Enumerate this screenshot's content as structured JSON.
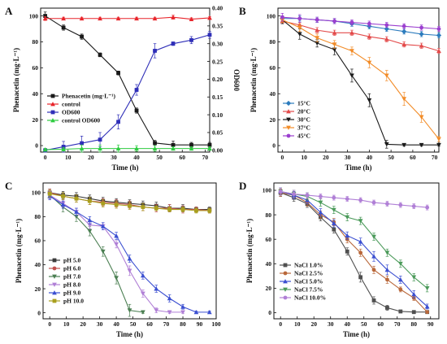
{
  "chart_data": [
    {
      "panel": "A",
      "type": "line",
      "xlabel": "Time (h)",
      "ylabel": "Phenacetin (mg·L⁻¹)",
      "y2label": "OD600",
      "xlim": [
        -2,
        72
      ],
      "ylim": [
        -5,
        106
      ],
      "y2lim": [
        -0.005,
        0.4
      ],
      "xticks": [
        0,
        10,
        20,
        30,
        40,
        50,
        60,
        70
      ],
      "yticks": [
        0,
        20,
        40,
        60,
        80,
        100
      ],
      "y2ticks": [
        0.0,
        0.05,
        0.1,
        0.15,
        0.2,
        0.25,
        0.3,
        0.35,
        0.4
      ],
      "y2ticklabels": [
        "0.00",
        "0.05",
        "0.10",
        "0.15",
        "0.20",
        "0.25",
        "0.30",
        "0.35",
        "0.40"
      ],
      "legend_position": "left",
      "series": [
        {
          "name": "Phenacetin (mg·L⁻¹)",
          "color": "#1a1a1a",
          "marker": "square",
          "axis": "left",
          "x": [
            0,
            8,
            16,
            24,
            32,
            40,
            48,
            56,
            64,
            72
          ],
          "y": [
            100,
            91,
            84,
            70,
            56,
            27,
            2,
            0.5,
            0.5,
            0.5
          ],
          "err": [
            3,
            2,
            2,
            1.5,
            1.5,
            2,
            2,
            3,
            2,
            2
          ]
        },
        {
          "name": "control",
          "color": "#e8242a",
          "marker": "triangle-up",
          "axis": "left",
          "x": [
            0,
            8,
            16,
            24,
            32,
            40,
            48,
            56,
            64,
            72
          ],
          "y": [
            98,
            98,
            98,
            98,
            98,
            98,
            98,
            99,
            97.5,
            98.5
          ],
          "err": [
            1.5,
            1,
            1,
            1,
            1,
            1,
            1,
            1.5,
            1,
            1
          ]
        },
        {
          "name": "OD600",
          "color": "#2f2fb8",
          "marker": "square",
          "axis": "right",
          "x": [
            0,
            8,
            16,
            24,
            32,
            40,
            48,
            56,
            64,
            72
          ],
          "y": [
            0.0,
            0.01,
            0.02,
            0.03,
            0.08,
            0.17,
            0.28,
            0.3,
            0.31,
            0.325
          ],
          "err": [
            0.005,
            0.015,
            0.02,
            0.02,
            0.02,
            0.015,
            0.02,
            0.005,
            0.01,
            0.01
          ]
        },
        {
          "name": "control OD600",
          "color": "#2ecc40",
          "marker": "triangle-up",
          "axis": "right",
          "x": [
            0,
            8,
            16,
            24,
            32,
            40,
            48,
            56,
            64,
            72
          ],
          "y": [
            0.002,
            0.003,
            0.005,
            0.005,
            0.005,
            0.005,
            0.005,
            0.005,
            0.005,
            0.005
          ],
          "err": [
            0.003,
            0.005,
            0.01,
            0.01,
            0.01,
            0.008,
            0.008,
            0.005,
            0.005,
            0.005
          ]
        }
      ]
    },
    {
      "panel": "B",
      "type": "line",
      "xlabel": "Time (h)",
      "ylabel": "Phenacetin (mg·L⁻¹)",
      "xlim": [
        -2,
        72
      ],
      "ylim": [
        -5,
        106
      ],
      "xticks": [
        0,
        10,
        20,
        30,
        40,
        50,
        60,
        70
      ],
      "yticks": [
        0,
        20,
        40,
        60,
        80,
        100
      ],
      "legend_position": "left",
      "series": [
        {
          "name": "15°C",
          "color": "#2b7bbd",
          "marker": "diamond",
          "x": [
            0,
            8,
            16,
            24,
            32,
            40,
            48,
            56,
            64,
            72
          ],
          "y": [
            98,
            98,
            97,
            96,
            94,
            92,
            90,
            88,
            86,
            85
          ],
          "err": [
            2,
            2,
            2,
            2,
            2,
            2,
            2,
            2,
            2,
            2
          ]
        },
        {
          "name": "20°C",
          "color": "#e34a4a",
          "marker": "triangle-up",
          "x": [
            0,
            8,
            16,
            24,
            32,
            40,
            48,
            56,
            64,
            72
          ],
          "y": [
            96,
            93,
            89,
            87,
            87,
            84,
            82,
            78,
            77,
            73
          ],
          "err": [
            2,
            2,
            2,
            2,
            2,
            2,
            2,
            2,
            2,
            2
          ]
        },
        {
          "name": "30°C",
          "color": "#1a1a1a",
          "marker": "triangle-down",
          "x": [
            0,
            8,
            16,
            24,
            32,
            40,
            48,
            56,
            64,
            72
          ],
          "y": [
            97,
            86,
            79,
            74,
            54,
            35,
            1,
            0.5,
            0.5,
            0.5
          ],
          "err": [
            3,
            4,
            3,
            4,
            5,
            5,
            3,
            1,
            1,
            1
          ]
        },
        {
          "name": "37°C",
          "color": "#f28c28",
          "marker": "triangle-down",
          "x": [
            0,
            8,
            16,
            24,
            32,
            40,
            48,
            56,
            64,
            72
          ],
          "y": [
            97,
            91,
            83,
            78,
            73,
            64,
            54,
            36,
            22,
            5
          ],
          "err": [
            2,
            3,
            3,
            3,
            3,
            4,
            4,
            5,
            4,
            2
          ]
        },
        {
          "name": "45°C",
          "color": "#9b3fcf",
          "marker": "circle",
          "x": [
            0,
            8,
            16,
            24,
            32,
            40,
            48,
            56,
            64,
            72
          ],
          "y": [
            99,
            98,
            97,
            96,
            95,
            94,
            93,
            92,
            91,
            90
          ],
          "err": [
            3,
            3,
            2,
            2,
            2,
            2,
            2,
            2,
            2,
            2
          ]
        }
      ]
    },
    {
      "panel": "C",
      "type": "line",
      "xlabel": "Time (h)",
      "ylabel": "Phenacetin (mg·L⁻¹)",
      "xlim": [
        -4,
        100
      ],
      "ylim": [
        -5,
        108
      ],
      "xticks": [
        0,
        10,
        20,
        30,
        40,
        50,
        60,
        70,
        80,
        90,
        100
      ],
      "yticks": [
        0,
        20,
        40,
        60,
        80,
        100
      ],
      "legend_position": "bottom-left",
      "series": [
        {
          "name": "pH 5.0",
          "color": "#3b3b3b",
          "marker": "square",
          "x": [
            0,
            8,
            16,
            24,
            32,
            40,
            48,
            56,
            64,
            72,
            80,
            88,
            96
          ],
          "y": [
            100,
            98,
            97,
            95,
            93,
            92,
            91,
            90,
            89,
            87,
            87,
            86,
            86
          ],
          "err": [
            3,
            3,
            3,
            3,
            3,
            3,
            3,
            3,
            3,
            3,
            3,
            2,
            2
          ]
        },
        {
          "name": "pH 6.0",
          "color": "#c0504d",
          "marker": "circle",
          "x": [
            0,
            8,
            16,
            24,
            32,
            40,
            48,
            56,
            64,
            72,
            80,
            88,
            96
          ],
          "y": [
            100,
            97,
            95,
            93,
            92,
            91,
            90,
            88,
            87,
            87,
            86,
            86,
            85
          ],
          "err": [
            3,
            3,
            3,
            3,
            3,
            3,
            3,
            3,
            3,
            3,
            3,
            2,
            2
          ]
        },
        {
          "name": "pH 7.0",
          "color": "#4b7f52",
          "marker": "triangle-down",
          "x": [
            0,
            8,
            16,
            24,
            32,
            40,
            48,
            56
          ],
          "y": [
            98,
            88,
            80,
            68,
            51,
            29,
            2,
            0.5
          ],
          "err": [
            3,
            4,
            4,
            4,
            4,
            5,
            5,
            1
          ]
        },
        {
          "name": "pH 8.0",
          "color": "#b07fd6",
          "marker": "triangle-down",
          "x": [
            0,
            8,
            16,
            24,
            32,
            40,
            48,
            56,
            64,
            72,
            80
          ],
          "y": [
            98,
            91,
            84,
            73,
            72,
            57,
            35,
            16,
            2,
            0.5,
            0.5
          ],
          "err": [
            3,
            3,
            3,
            3,
            3,
            3,
            4,
            3,
            2,
            1,
            1
          ]
        },
        {
          "name": "pH 9.0",
          "color": "#3b4fd1",
          "marker": "triangle-up",
          "x": [
            0,
            8,
            16,
            24,
            32,
            40,
            48,
            56,
            64,
            72,
            80,
            88,
            96
          ],
          "y": [
            97,
            90,
            84,
            77,
            72,
            64,
            45,
            31,
            20,
            12,
            5,
            0.5,
            0.5
          ],
          "err": [
            3,
            3,
            3,
            3,
            3,
            3,
            3,
            3,
            3,
            3,
            2,
            1,
            1
          ]
        },
        {
          "name": "pH 10.0",
          "color": "#a99f1f",
          "marker": "square",
          "x": [
            0,
            8,
            16,
            24,
            32,
            40,
            48,
            56,
            64,
            72,
            80,
            88,
            96
          ],
          "y": [
            99,
            97,
            95,
            93,
            91,
            90,
            89,
            88,
            87,
            86,
            86,
            85,
            85
          ],
          "err": [
            3,
            3,
            3,
            3,
            3,
            3,
            3,
            3,
            2,
            2,
            2,
            2,
            2
          ]
        }
      ]
    },
    {
      "panel": "D",
      "type": "line",
      "xlabel": "Time (h)",
      "ylabel": "Phenacetin (mg·L⁻¹)",
      "xlim": [
        -4,
        95
      ],
      "ylim": [
        -5,
        106
      ],
      "xticks": [
        0,
        10,
        20,
        30,
        40,
        50,
        60,
        70,
        80,
        90
      ],
      "yticks": [
        0,
        20,
        40,
        60,
        80,
        100
      ],
      "legend_position": "bottom-left",
      "series": [
        {
          "name": "NaCl 1.0%",
          "color": "#505050",
          "marker": "square",
          "x": [
            0,
            8,
            16,
            24,
            32,
            40,
            48,
            56,
            64,
            72,
            80,
            88
          ],
          "y": [
            98,
            94,
            89,
            78,
            68,
            50,
            29,
            10,
            4,
            1,
            0.5,
            0.5
          ],
          "err": [
            3,
            3,
            3,
            3,
            3,
            3,
            4,
            3,
            2,
            1,
            1,
            1
          ]
        },
        {
          "name": "NaCl 2.5%",
          "color": "#b9683b",
          "marker": "circle",
          "x": [
            0,
            8,
            16,
            24,
            32,
            40,
            48,
            56,
            64,
            72,
            80,
            88
          ],
          "y": [
            98,
            96,
            90,
            80,
            74,
            60,
            49,
            35,
            27,
            19,
            12,
            0.5
          ],
          "err": [
            3,
            3,
            3,
            3,
            3,
            3,
            3,
            3,
            3,
            2,
            2,
            1
          ]
        },
        {
          "name": "NaCl 5.0%",
          "color": "#3b4fd1",
          "marker": "triangle-up",
          "x": [
            0,
            8,
            16,
            24,
            32,
            40,
            48,
            56,
            64,
            72,
            80,
            88
          ],
          "y": [
            99,
            96,
            92,
            82,
            73,
            63,
            58,
            46,
            35,
            27,
            15,
            5
          ],
          "err": [
            3,
            3,
            3,
            3,
            3,
            3,
            3,
            4,
            4,
            3,
            3,
            2
          ]
        },
        {
          "name": "NaCl 7.5%",
          "color": "#4b9a5a",
          "marker": "triangle-down",
          "x": [
            0,
            8,
            16,
            24,
            32,
            40,
            48,
            56,
            64,
            72,
            80,
            88
          ],
          "y": [
            99,
            97,
            95,
            90,
            84,
            78,
            75,
            62,
            49,
            40,
            29,
            20
          ],
          "err": [
            3,
            3,
            3,
            3,
            3,
            3,
            3,
            3,
            3,
            3,
            3,
            3
          ]
        },
        {
          "name": "NaCl 10.0%",
          "color": "#b07fd6",
          "marker": "circle",
          "x": [
            0,
            8,
            16,
            24,
            32,
            40,
            48,
            56,
            64,
            72,
            80,
            88
          ],
          "y": [
            99,
            97,
            96,
            95,
            94,
            93,
            92,
            90,
            89,
            88,
            87,
            86
          ],
          "err": [
            3,
            3,
            2,
            2,
            2,
            2,
            2,
            2,
            2,
            2,
            2,
            2
          ]
        }
      ]
    }
  ]
}
